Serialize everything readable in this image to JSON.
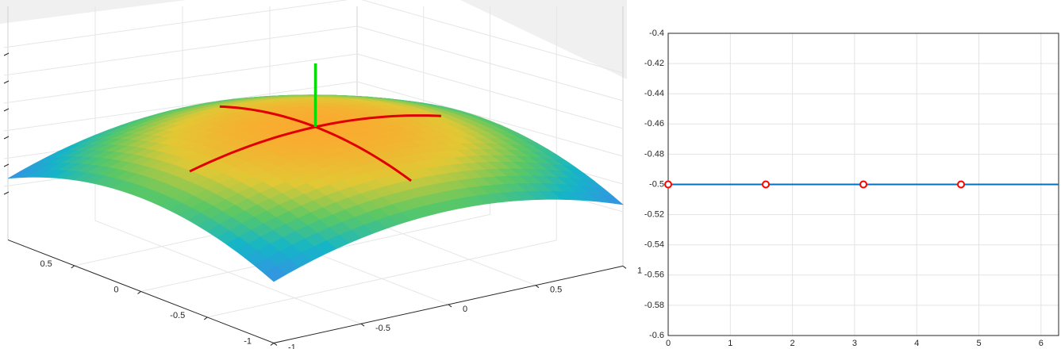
{
  "chart_data": [
    {
      "type": "surface",
      "xlim": [
        -1,
        1
      ],
      "ylim": [
        -1,
        1
      ],
      "xticks": [
        -1,
        -0.5,
        0,
        0.5
      ],
      "yticks": [
        -1,
        -0.5,
        0,
        0.5,
        1
      ]
    },
    {
      "type": "line",
      "xlim": [
        0,
        6.2832
      ],
      "ylim": [
        -0.6,
        -0.4
      ],
      "xticks": [
        0,
        1,
        2,
        3,
        4,
        5,
        6
      ],
      "yticks": [
        -0.6,
        -0.58,
        -0.56,
        -0.54,
        -0.52,
        -0.5,
        -0.48,
        -0.46,
        -0.44,
        -0.42,
        -0.4
      ],
      "grid": true,
      "series": [
        {
          "color": "#0072bd",
          "x": [
            0,
            6.2832
          ],
          "values": [
            -0.5,
            -0.5
          ]
        },
        {
          "color": "#ff0000",
          "marker": "o",
          "x": [
            0,
            1.5708,
            3.1416,
            4.7124
          ],
          "values": [
            -0.5,
            -0.5,
            -0.5,
            -0.5
          ]
        }
      ]
    }
  ]
}
